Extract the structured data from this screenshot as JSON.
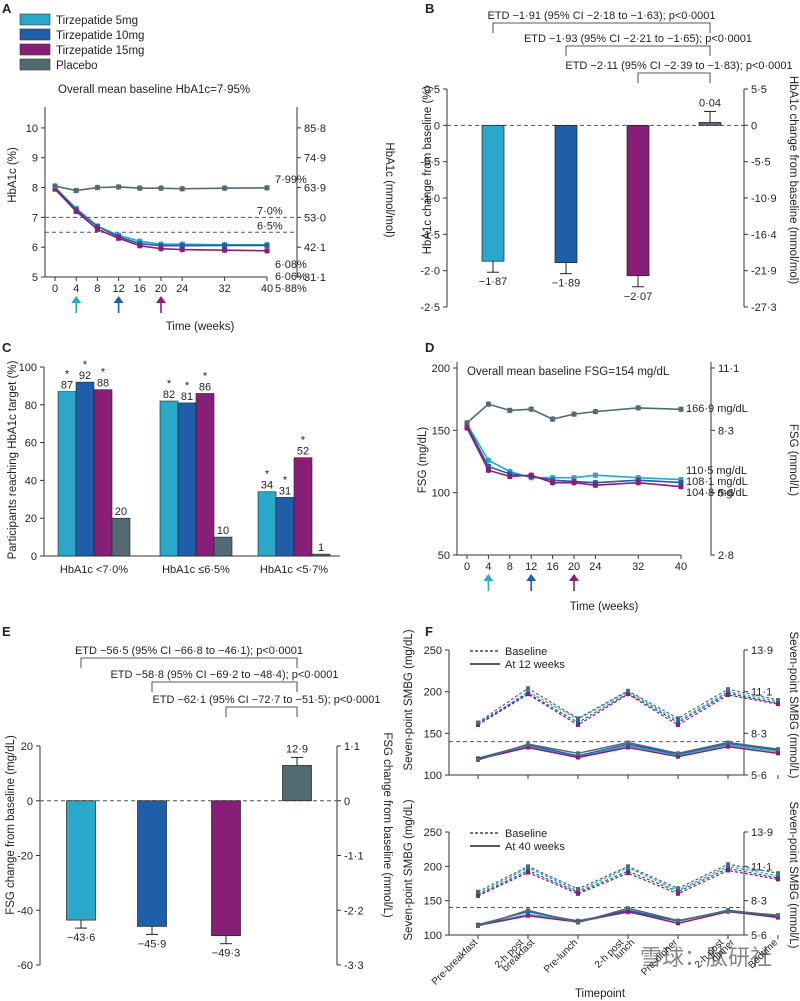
{
  "colors": {
    "c5": "#2aa7c9",
    "c10": "#1f5ea8",
    "c15": "#871f78",
    "placebo": "#526a73"
  },
  "legend_a": [
    "Tirzepatide 5mg",
    "Tirzepatide 10mg",
    "Tirzepatide 15mg",
    "Placebo"
  ],
  "chart_data": [
    {
      "panel": "A",
      "type": "line",
      "title": "Overall mean baseline HbA1c=7·95%",
      "xlabel": "Time (weeks)",
      "ylabel_left": "HbA1c (%)",
      "ylabel_right": "HbA1c (mmol/mol)",
      "x": [
        0,
        4,
        8,
        12,
        16,
        20,
        24,
        32,
        40
      ],
      "xticks": [
        "0",
        "4",
        "8",
        "12",
        "16",
        "20",
        "24",
        "32",
        "40"
      ],
      "ylim": [
        5,
        10.5
      ],
      "yticks_left": [
        "5",
        "6",
        "7",
        "8",
        "9",
        "10"
      ],
      "yticks_right": [
        "31·1",
        "42·1",
        "53·0",
        "63·9",
        "74·9",
        "85·8"
      ],
      "refs": [
        {
          "y": 7.0,
          "label": "7·0%",
          "right": "53·0"
        },
        {
          "y": 6.5,
          "label": "6·5%"
        }
      ],
      "arrows_at": [
        4,
        12,
        20
      ],
      "series": [
        {
          "name": "Tirzepatide 5mg",
          "color": "c5",
          "values": [
            8.0,
            7.3,
            6.7,
            6.4,
            6.2,
            6.1,
            6.1,
            6.08,
            6.08
          ],
          "end_label": "6·08%"
        },
        {
          "name": "Tirzepatide 10mg",
          "color": "c10",
          "values": [
            8.0,
            7.25,
            6.7,
            6.35,
            6.12,
            6.05,
            6.05,
            6.06,
            6.06
          ],
          "end_label": "6·06%"
        },
        {
          "name": "Tirzepatide 15mg",
          "color": "c15",
          "values": [
            7.95,
            7.2,
            6.6,
            6.3,
            6.05,
            5.95,
            5.92,
            5.9,
            5.88
          ],
          "end_label": "5·88%"
        },
        {
          "name": "Placebo",
          "color": "placebo",
          "values": [
            8.05,
            7.9,
            8.0,
            8.02,
            7.98,
            7.98,
            7.96,
            7.98,
            7.99
          ],
          "end_label": "7·99%"
        }
      ]
    },
    {
      "panel": "B",
      "type": "bar",
      "ylabel_left": "HbA1c change from baseline (%)",
      "ylabel_right": "HbA1c change from baseline (mmol/mol)",
      "ylim": [
        -2.5,
        0.5
      ],
      "yticks_left": [
        "0·5",
        "0",
        "-0·5",
        "-1·0",
        "-1·5",
        "-2·0",
        "-2·5"
      ],
      "yticks_right": [
        "5·5",
        "0",
        "-5·5",
        "-10·9",
        "-16·4",
        "-21·9",
        "-27·3"
      ],
      "values": [
        -1.87,
        -1.89,
        -2.07,
        0.04
      ],
      "labels": [
        "−1·87",
        "−1·89",
        "−2·07",
        "0·04"
      ],
      "colors": [
        "c5",
        "c10",
        "c15",
        "placebo"
      ],
      "etd": [
        "ETD −1·91 (95% CI −2·18 to −1·63); p<0·0001",
        "ETD −1·93 (95% CI −2·21 to −1·65); p<0·0001",
        "ETD −2·11 (95% CI −2·39 to −1·83); p<0·0001"
      ]
    },
    {
      "panel": "C",
      "type": "bar",
      "ylabel": "Participants reaching HbA1c target (%)",
      "ylim": [
        0,
        100
      ],
      "yticks": [
        "0",
        "20",
        "40",
        "60",
        "80",
        "100"
      ],
      "categories": [
        "HbA1c <7·0%",
        "HbA1c ≤6·5%",
        "HbA1c <5·7%"
      ],
      "series": [
        {
          "name": "Tirzepatide 5mg",
          "color": "c5",
          "values": [
            87,
            82,
            34
          ],
          "labels": [
            "87",
            "82",
            "34"
          ]
        },
        {
          "name": "Tirzepatide 10mg",
          "color": "c10",
          "values": [
            92,
            81,
            31
          ],
          "labels": [
            "92",
            "81",
            "31"
          ]
        },
        {
          "name": "Tirzepatide 15mg",
          "color": "c15",
          "values": [
            88,
            86,
            52
          ],
          "labels": [
            "88",
            "86",
            "52"
          ]
        },
        {
          "name": "Placebo",
          "color": "placebo",
          "values": [
            20,
            10,
            1
          ],
          "labels": [
            "20",
            "10",
            "1"
          ]
        }
      ],
      "star": "*"
    },
    {
      "panel": "D",
      "type": "line",
      "title": "Overall mean baseline FSG=154 mg/dL",
      "xlabel": "Time (weeks)",
      "ylabel_left": "FSG (mg/dL)",
      "ylabel_right": "FSG (mmol/L)",
      "x": [
        0,
        4,
        8,
        12,
        16,
        20,
        24,
        32,
        40
      ],
      "xticks": [
        "0",
        "4",
        "8",
        "12",
        "16",
        "20",
        "24",
        "32",
        "40"
      ],
      "ylim": [
        50,
        200
      ],
      "yticks_left": [
        "50",
        "100",
        "150",
        "200"
      ],
      "yticks_right": [
        "2·8",
        "5·6",
        "8·3",
        "11·1"
      ],
      "arrows_at": [
        4,
        12,
        20
      ],
      "series": [
        {
          "name": "Tirzepatide 5mg",
          "color": "c5",
          "values": [
            155,
            126,
            117,
            112,
            112,
            112,
            114,
            112,
            110.5
          ],
          "end_label": "110·5 mg/dL"
        },
        {
          "name": "Tirzepatide 10mg",
          "color": "c10",
          "values": [
            154,
            121,
            115,
            113,
            110,
            109,
            108,
            110,
            108.1
          ],
          "end_label": "108·1 mg/dL"
        },
        {
          "name": "Tirzepatide 15mg",
          "color": "c15",
          "values": [
            152,
            118,
            113,
            114,
            108,
            108,
            106,
            108,
            104.8
          ],
          "end_label": "104·8 mg/dL"
        },
        {
          "name": "Placebo",
          "color": "placebo",
          "values": [
            156,
            171,
            166,
            167,
            159,
            163,
            165,
            168,
            166.9
          ],
          "end_label": "166·9 mg/dL"
        }
      ]
    },
    {
      "panel": "E",
      "type": "bar",
      "ylabel_left": "FSG change from baseline (mg/dL)",
      "ylabel_right": "FSG change from baseline (mmol/L)",
      "ylim": [
        -60,
        20
      ],
      "yticks_left": [
        "20",
        "0",
        "-20",
        "-40",
        "-60"
      ],
      "yticks_right": [
        "1·1",
        "0",
        "-1·1",
        "-2·2",
        "-3·3"
      ],
      "values": [
        -43.6,
        -45.9,
        -49.3,
        12.9
      ],
      "labels": [
        "−43·6",
        "−45·9",
        "−49·3",
        "12·9"
      ],
      "colors": [
        "c5",
        "c10",
        "c15",
        "placebo"
      ],
      "etd": [
        "ETD −56·5 (95% CI −66·8 to −46·1); p<0·0001",
        "ETD −58·8 (95% CI −69·2 to −48·4); p<0·0001",
        "ETD −62·1 (95% CI −72·7 to −51·5); p<0·0001"
      ]
    },
    {
      "panel": "F",
      "type": "line",
      "xlabel": "Timepoint",
      "ylabel_left": "Seven-point SMBG (mg/dL)",
      "ylabel_right": "Seven-point SMBG (mmol/L)",
      "categories": [
        "Pre-breakfast",
        "2-h post breakfast",
        "Pre-lunch",
        "2-h post lunch",
        "Pre-dinner",
        "2-h post dinner",
        "Bedtime"
      ],
      "xtick_labels": [
        "Pre-breakfast",
        "2-h post",
        "breakfast",
        "Pre-lunch",
        "2-h post",
        "lunch",
        "Pre-dinner",
        "2-h post",
        "dinner",
        "Bedtime"
      ],
      "ylim": [
        100,
        250
      ],
      "yticks_left": [
        "100",
        "150",
        "200",
        "250"
      ],
      "yticks_right": [
        "5·6",
        "8·3",
        "11·1",
        "13·9"
      ],
      "ref_y": 140,
      "subplots": [
        {
          "legend": [
            "Baseline",
            "At 12 weeks"
          ],
          "baseline": [
            [
              160,
              200,
              167,
              200,
              165,
              200,
              188
            ],
            [
              162,
              198,
              163,
              198,
              163,
              198,
              186
            ],
            [
              160,
              197,
              160,
              197,
              160,
              196,
              185
            ],
            [
              163,
              204,
              168,
              201,
              168,
              203,
              190
            ]
          ],
          "followup": [
            [
              119,
              134,
              121,
              135,
              124,
              136,
              128
            ],
            [
              120,
              136,
              123,
              137,
              125,
              138,
              130
            ],
            [
              119,
              133,
              121,
              133,
              122,
              134,
              126
            ],
            [
              118,
              137,
              126,
              139,
              126,
              139,
              131
            ]
          ]
        },
        {
          "legend": [
            "Baseline",
            "At 40 weeks"
          ],
          "baseline": [
            [
              160,
              198,
              164,
              198,
              165,
              200,
              186
            ],
            [
              158,
              194,
              162,
              193,
              163,
              197,
              183
            ],
            [
              157,
              191,
              160,
              190,
              160,
              194,
              181
            ],
            [
              163,
              200,
              167,
              200,
              168,
              203,
              190
            ]
          ],
          "followup": [
            [
              114,
              130,
              121,
              133,
              121,
              135,
              125
            ],
            [
              115,
              134,
              120,
              136,
              120,
              136,
              128
            ],
            [
              114,
              128,
              119,
              134,
              117,
              134,
              126
            ],
            [
              113,
              136,
              118,
              139,
              121,
              135,
              129
            ]
          ]
        }
      ]
    }
  ],
  "watermark": "雪球：肽研社"
}
